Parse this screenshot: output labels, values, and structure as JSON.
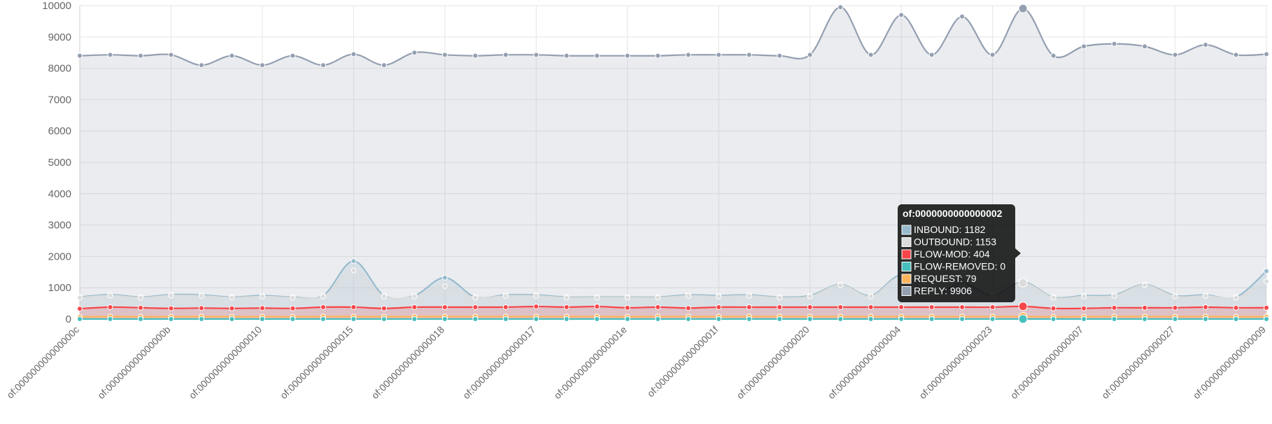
{
  "chart_data": {
    "type": "line",
    "title": "",
    "xlabel": "",
    "ylabel": "",
    "ylim": [
      0,
      10000
    ],
    "yticks": [
      0,
      1000,
      2000,
      3000,
      4000,
      5000,
      6000,
      7000,
      8000,
      9000,
      10000
    ],
    "grid": true,
    "legend": "none",
    "x_tick_labels": [
      "of:000000000000000c",
      "of:000000000000000b",
      "of:0000000000000010",
      "of:0000000000000015",
      "of:0000000000000018",
      "of:0000000000000017",
      "of:000000000000001e",
      "of:000000000000001f",
      "of:0000000000000020",
      "of:0000000000000004",
      "of:0000000000000023",
      "of:0000000000000007",
      "of:0000000000000027",
      "of:0000000000000009"
    ],
    "point_count": 40,
    "series": [
      {
        "name": "INBOUND",
        "color": "#97bbcd",
        "fill": "rgba(151,187,205,0.2)",
        "values": [
          700,
          780,
          700,
          780,
          770,
          700,
          750,
          700,
          750,
          1850,
          750,
          750,
          1320,
          700,
          770,
          770,
          700,
          700,
          700,
          700,
          770,
          750,
          770,
          700,
          750,
          1100,
          750,
          1400,
          750,
          1150,
          750,
          1182,
          700,
          750,
          770,
          1100,
          750,
          770,
          700,
          1530
        ]
      },
      {
        "name": "OUTBOUND",
        "color": "#dcdcdc",
        "fill": "rgba(220,220,220,0.2)",
        "values": [
          680,
          750,
          680,
          750,
          740,
          680,
          720,
          680,
          720,
          1550,
          720,
          720,
          1050,
          680,
          740,
          740,
          680,
          680,
          680,
          680,
          740,
          720,
          740,
          680,
          720,
          1080,
          720,
          1350,
          720,
          1100,
          720,
          1153,
          680,
          720,
          740,
          1080,
          720,
          740,
          680,
          1200
        ]
      },
      {
        "name": "FLOW-MOD",
        "color": "#f7464a",
        "fill": "rgba(247,70,74,0.2)",
        "values": [
          330,
          380,
          360,
          340,
          350,
          340,
          350,
          340,
          380,
          380,
          340,
          380,
          380,
          380,
          380,
          400,
          380,
          400,
          360,
          380,
          350,
          380,
          380,
          380,
          380,
          380,
          380,
          380,
          380,
          380,
          380,
          404,
          340,
          340,
          360,
          360,
          360,
          380,
          360,
          360
        ]
      },
      {
        "name": "FLOW-REMOVED",
        "color": "#46bfbd",
        "fill": "rgba(70,191,189,0.2)",
        "values": [
          0,
          0,
          0,
          0,
          0,
          0,
          0,
          0,
          0,
          0,
          0,
          0,
          0,
          0,
          0,
          0,
          0,
          0,
          0,
          0,
          0,
          0,
          0,
          0,
          0,
          0,
          0,
          0,
          0,
          0,
          0,
          0,
          0,
          0,
          0,
          0,
          0,
          0,
          0,
          0
        ]
      },
      {
        "name": "REQUEST",
        "color": "#fdb45c",
        "fill": "rgba(253,180,92,0.2)",
        "values": [
          70,
          80,
          75,
          78,
          80,
          75,
          78,
          75,
          80,
          80,
          75,
          80,
          80,
          80,
          80,
          80,
          78,
          80,
          75,
          80,
          78,
          80,
          80,
          80,
          80,
          80,
          80,
          80,
          80,
          80,
          80,
          79,
          75,
          78,
          80,
          80,
          78,
          80,
          75,
          78
        ]
      },
      {
        "name": "REPLY",
        "color": "#949fb1",
        "fill": "rgba(148,159,177,0.2)",
        "values": [
          8400,
          8430,
          8400,
          8430,
          8100,
          8400,
          8100,
          8400,
          8100,
          8450,
          8100,
          8500,
          8430,
          8400,
          8430,
          8430,
          8400,
          8400,
          8400,
          8400,
          8430,
          8430,
          8430,
          8400,
          8430,
          9950,
          8430,
          9700,
          8430,
          9650,
          8430,
          9906,
          8400,
          8700,
          8780,
          8700,
          8430,
          8750,
          8430,
          8450
        ]
      }
    ],
    "tooltip": {
      "title": "of:0000000000000002",
      "point_index": 31,
      "lines": [
        {
          "series": "INBOUND",
          "text": "INBOUND: 1182"
        },
        {
          "series": "OUTBOUND",
          "text": "OUTBOUND: 1153"
        },
        {
          "series": "FLOW-MOD",
          "text": "FLOW-MOD: 404"
        },
        {
          "series": "FLOW-REMOVED",
          "text": "FLOW-REMOVED: 0"
        },
        {
          "series": "REQUEST",
          "text": "REQUEST: 79"
        },
        {
          "series": "REPLY",
          "text": "REPLY: 9906"
        }
      ]
    }
  }
}
